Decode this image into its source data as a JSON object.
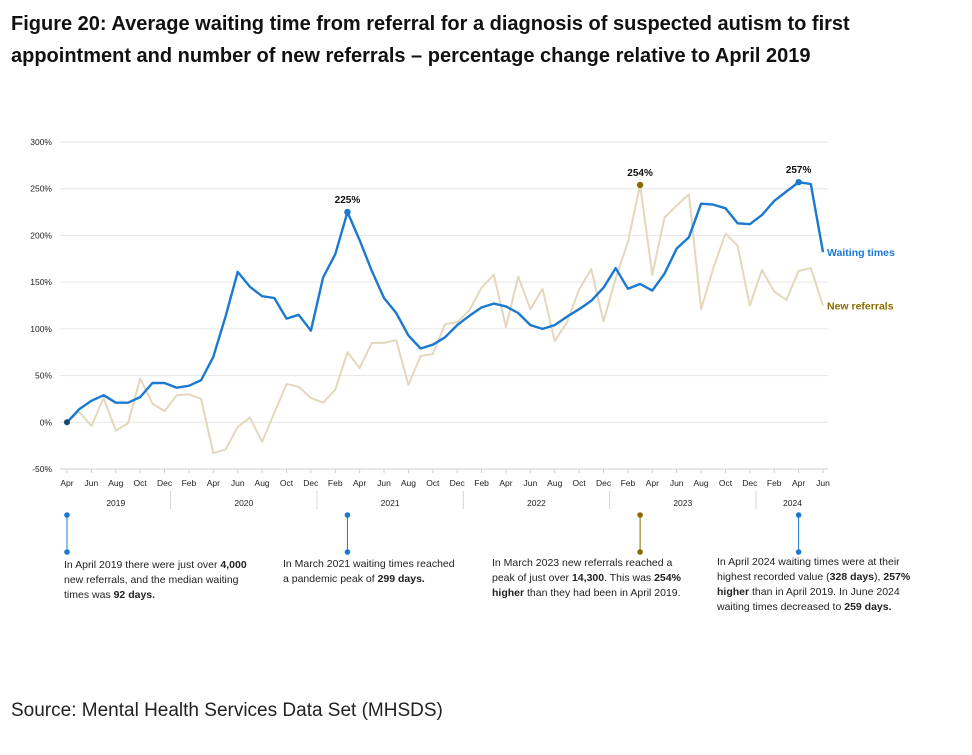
{
  "title": "Figure 20: Average waiting time from referral for a diagnosis of suspected autism to first appointment and number of new referrals – percentage change relative to April 2019",
  "source": "Source: Mental Health Services Data Set (MHSDS)",
  "colors": {
    "waiting": "#1a79d0",
    "referrals": "#e3d8bd",
    "referrals_label": "#8a6b00",
    "peak_marker": "#8a6b00",
    "grid": "#e6e6e6"
  },
  "chart_data": {
    "type": "line",
    "title": "Figure 20: Average waiting time from referral for a diagnosis of suspected autism to first appointment and number of new referrals – percentage change relative to April 2019",
    "ylabel": "",
    "xlabel": "",
    "ylim": [
      -50,
      300
    ],
    "yticks": [
      -50,
      0,
      50,
      100,
      150,
      200,
      250,
      300
    ],
    "ytick_labels": [
      "-50%",
      "0%",
      "50%",
      "100%",
      "150%",
      "200%",
      "250%",
      "300%"
    ],
    "grid": "horizontal",
    "x": [
      "2019-04",
      "2019-05",
      "2019-06",
      "2019-07",
      "2019-08",
      "2019-09",
      "2019-10",
      "2019-11",
      "2019-12",
      "2020-01",
      "2020-02",
      "2020-03",
      "2020-04",
      "2020-05",
      "2020-06",
      "2020-07",
      "2020-08",
      "2020-09",
      "2020-10",
      "2020-11",
      "2020-12",
      "2021-01",
      "2021-02",
      "2021-03",
      "2021-04",
      "2021-05",
      "2021-06",
      "2021-07",
      "2021-08",
      "2021-09",
      "2021-10",
      "2021-11",
      "2021-12",
      "2022-01",
      "2022-02",
      "2022-03",
      "2022-04",
      "2022-05",
      "2022-06",
      "2022-07",
      "2022-08",
      "2022-09",
      "2022-10",
      "2022-11",
      "2022-12",
      "2023-01",
      "2023-02",
      "2023-03",
      "2023-04",
      "2023-05",
      "2023-06",
      "2023-07",
      "2023-08",
      "2023-09",
      "2023-10",
      "2023-11",
      "2023-12",
      "2024-01",
      "2024-02",
      "2024-03",
      "2024-04",
      "2024-05",
      "2024-06"
    ],
    "xtick_labels": [
      "Apr",
      "Jun",
      "Aug",
      "Oct",
      "Dec",
      "Feb",
      "Apr",
      "Jun",
      "Aug",
      "Oct",
      "Dec",
      "Feb",
      "Apr",
      "Jun",
      "Aug",
      "Oct",
      "Dec",
      "Feb",
      "Apr",
      "Jun",
      "Aug",
      "Oct",
      "Dec",
      "Feb",
      "Apr",
      "Jun",
      "Aug",
      "Oct",
      "Dec",
      "Feb",
      "Apr",
      "Jun"
    ],
    "year_labels": [
      "2019",
      "2020",
      "2021",
      "2022",
      "2023",
      "2024"
    ],
    "series": [
      {
        "name": "Waiting times",
        "values": [
          0,
          14,
          23,
          29,
          21,
          21,
          27,
          42,
          42,
          37,
          39,
          45,
          70,
          113,
          161,
          145,
          135,
          133,
          111,
          115,
          98,
          155,
          180,
          225,
          195,
          162,
          133,
          117,
          93,
          79,
          83,
          91,
          104,
          114,
          123,
          127,
          124,
          117,
          104,
          100,
          104,
          113,
          121,
          130,
          144,
          165,
          143,
          148,
          141,
          159,
          186,
          198,
          234,
          233,
          229,
          213,
          212,
          222,
          237,
          247,
          257,
          255,
          182
        ]
      },
      {
        "name": "New referrals",
        "values": [
          0,
          11,
          -4,
          26,
          -9,
          -1,
          47,
          20,
          12,
          29,
          30,
          25,
          -33,
          -29,
          -5,
          5,
          -21,
          10,
          41,
          38,
          26,
          21,
          35,
          75,
          58,
          85,
          85,
          88,
          40,
          71,
          73,
          105,
          107,
          120,
          144,
          158,
          102,
          156,
          121,
          143,
          87,
          107,
          142,
          164,
          108,
          154,
          193,
          254,
          158,
          219,
          232,
          244,
          121,
          165,
          202,
          189,
          125,
          163,
          140,
          131,
          162,
          165,
          125
        ]
      }
    ],
    "annotations": [
      {
        "label": "225%",
        "series": "Waiting times",
        "x": "2021-03",
        "value": 225
      },
      {
        "label": "254%",
        "series": "New referrals",
        "x": "2023-03",
        "value": 254
      },
      {
        "label": "257%",
        "series": "Waiting times",
        "x": "2024-04",
        "value": 257
      }
    ]
  },
  "callouts": [
    {
      "x": "2019-04",
      "color": "waiting",
      "parts": [
        [
          "In April 2019 there were just over ",
          false
        ],
        [
          "4,000",
          true
        ],
        [
          " new referrals, and the median waiting times was ",
          false
        ],
        [
          "92 days.",
          true
        ]
      ]
    },
    {
      "x": "2021-03",
      "color": "waiting",
      "parts": [
        [
          "In March 2021 waiting times reached a pandemic peak of ",
          false
        ],
        [
          "299 days.",
          true
        ]
      ]
    },
    {
      "x": "2023-03",
      "color": "peak_marker",
      "parts": [
        [
          "In March 2023 new referrals reached a peak of just over ",
          false
        ],
        [
          "14,300",
          true
        ],
        [
          ". This was ",
          false
        ],
        [
          "254% higher",
          true
        ],
        [
          " than they had been in April 2019.",
          false
        ]
      ]
    },
    {
      "x": "2024-04",
      "color": "waiting",
      "parts": [
        [
          "In April 2024 waiting times were at their highest recorded value (",
          false
        ],
        [
          "328 days",
          true
        ],
        [
          "), ",
          false
        ],
        [
          "257% higher",
          true
        ],
        [
          " than in April 2019. In June 2024 waiting times decreased to ",
          false
        ],
        [
          "259 days.",
          true
        ]
      ]
    }
  ]
}
